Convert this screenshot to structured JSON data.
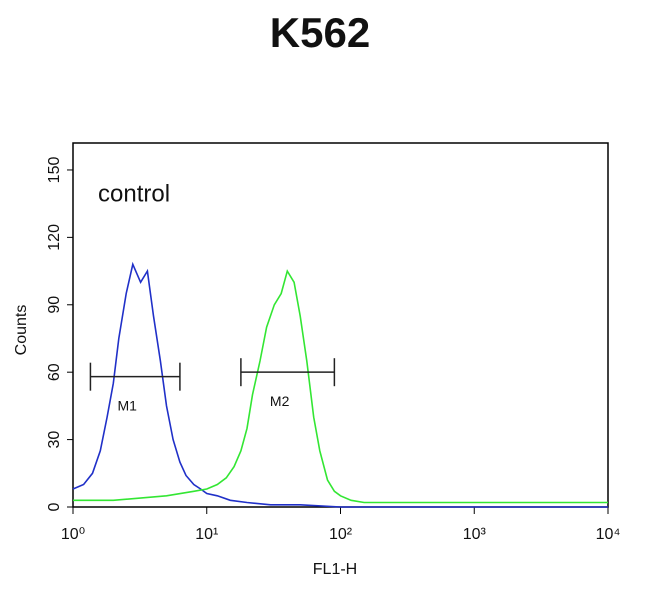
{
  "chart_data": {
    "type": "histogram-line",
    "title": "K562",
    "annotation": "control",
    "x_label": "FL1-H",
    "y_label": "Counts",
    "x_log": true,
    "xlim": [
      1,
      10000
    ],
    "xticks": [
      {
        "value": 1,
        "label": "10⁰"
      },
      {
        "value": 10,
        "label": "10¹"
      },
      {
        "value": 100,
        "label": "10²"
      },
      {
        "value": 1000,
        "label": "10³"
      },
      {
        "value": 10000,
        "label": "10⁴"
      }
    ],
    "ylim": [
      0,
      162
    ],
    "yticks": [
      0,
      30,
      60,
      90,
      120,
      150
    ],
    "series": [
      {
        "color": "#2030c8",
        "x": [
          1,
          1.2,
          1.4,
          1.6,
          1.8,
          2,
          2.2,
          2.5,
          2.8,
          3.2,
          3.6,
          4,
          4.5,
          5,
          5.6,
          6.3,
          7,
          8,
          9,
          10,
          12,
          15,
          20,
          30,
          50,
          100,
          200,
          1000,
          10000
        ],
        "values": [
          8,
          10,
          15,
          25,
          40,
          55,
          75,
          95,
          108,
          100,
          105,
          85,
          65,
          45,
          30,
          20,
          14,
          10,
          8,
          6,
          5,
          3,
          2,
          1,
          1,
          0,
          0,
          0,
          0
        ]
      },
      {
        "color": "#33e633",
        "x": [
          1,
          2,
          5,
          8,
          10,
          12,
          14,
          16,
          18,
          20,
          22,
          25,
          28,
          32,
          36,
          40,
          45,
          50,
          56,
          63,
          70,
          80,
          90,
          100,
          120,
          150,
          200,
          500,
          1000,
          5000,
          10000
        ],
        "values": [
          3,
          3,
          5,
          7,
          8,
          10,
          13,
          18,
          25,
          35,
          50,
          65,
          80,
          90,
          95,
          105,
          100,
          85,
          65,
          40,
          25,
          12,
          7,
          5,
          3,
          2,
          2,
          2,
          2,
          2,
          2
        ]
      }
    ],
    "markers": [
      {
        "label": "M1",
        "x": [
          1.35,
          6.3
        ],
        "y": 58
      },
      {
        "label": "M2",
        "x": [
          18,
          90
        ],
        "y": 60
      }
    ]
  }
}
